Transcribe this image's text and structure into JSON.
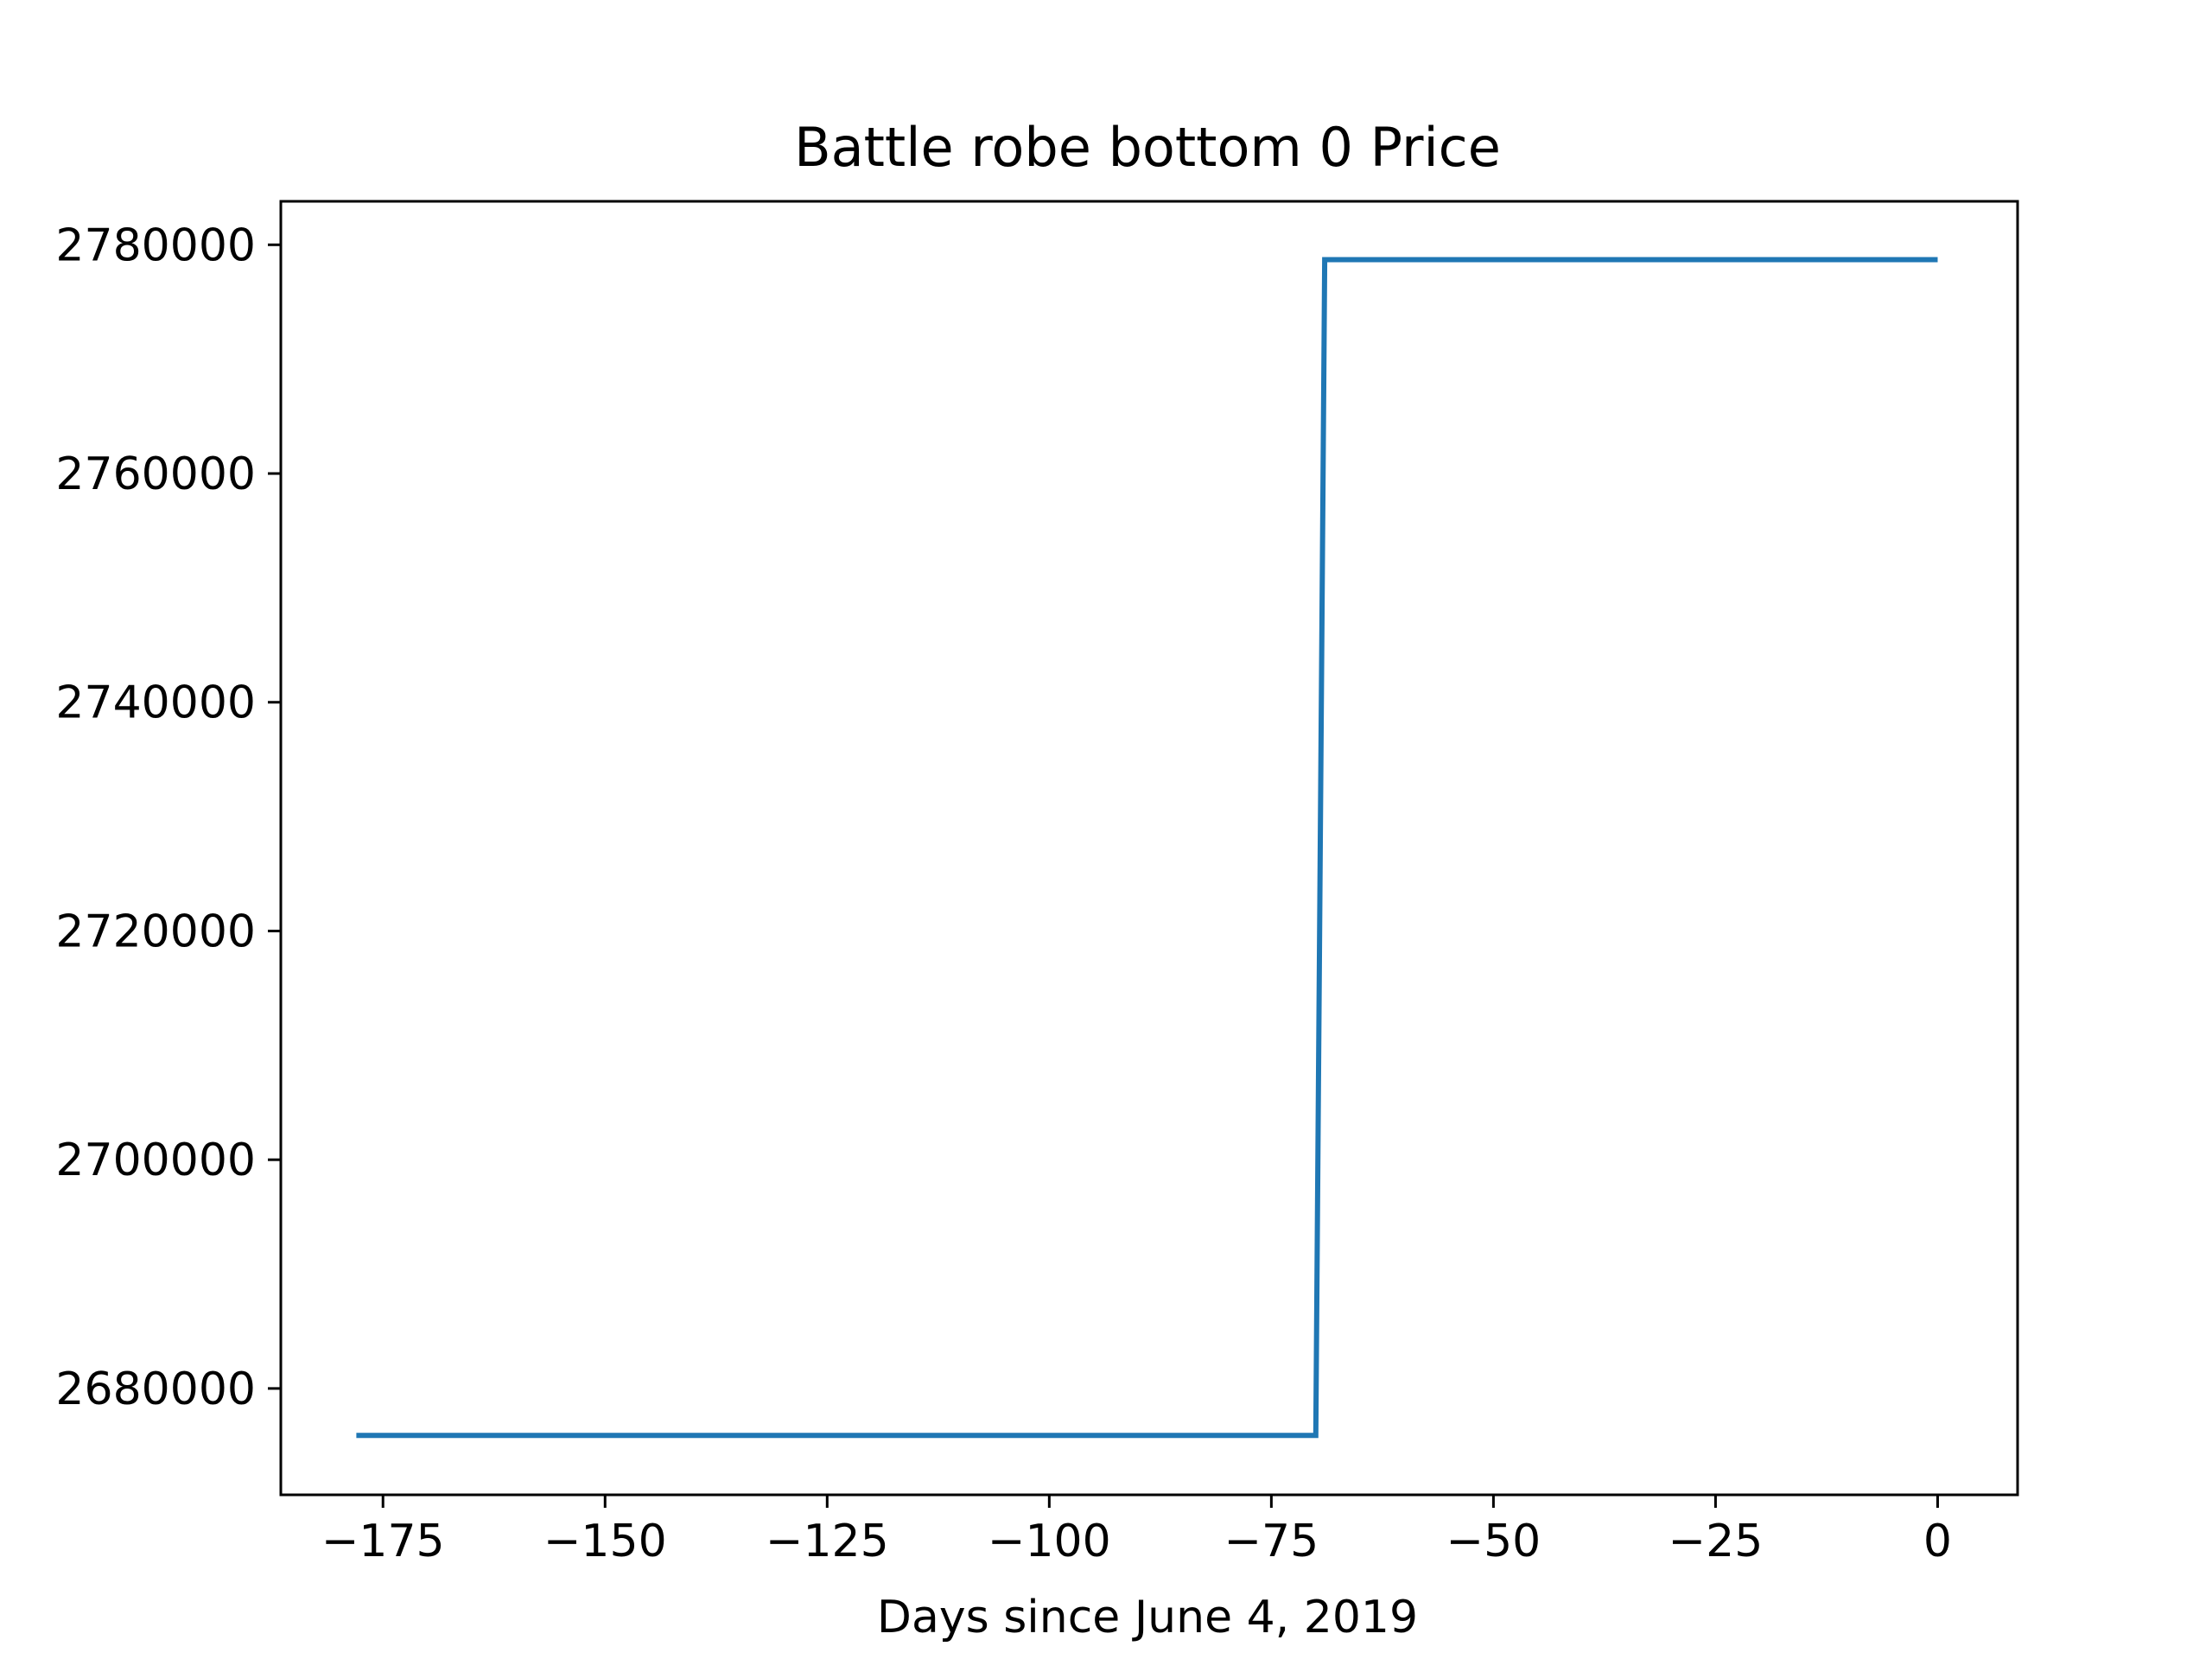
{
  "chart_data": {
    "type": "line",
    "title": "Battle robe bottom 0 Price",
    "xlabel": "Days since June 4, 2019",
    "ylabel": "",
    "xlim": [
      -186.5,
      9
    ],
    "ylim": [
      2670700,
      2783800
    ],
    "x_ticks": [
      -175,
      -150,
      -125,
      -100,
      -75,
      -50,
      -25,
      0
    ],
    "x_tick_labels": [
      "−175",
      "−150",
      "−125",
      "−100",
      "−75",
      "−50",
      "−25",
      "0"
    ],
    "y_ticks": [
      2680000,
      2700000,
      2720000,
      2740000,
      2760000,
      2780000
    ],
    "y_tick_labels": [
      "2680000",
      "2700000",
      "2720000",
      "2740000",
      "2760000",
      "2780000"
    ],
    "grid": false,
    "series": [
      {
        "color": "#1f77b4",
        "points": [
          {
            "x": -178,
            "y": 2675900
          },
          {
            "x": -70,
            "y": 2675900
          },
          {
            "x": -69,
            "y": 2778700
          },
          {
            "x": 0,
            "y": 2778700
          }
        ]
      }
    ]
  }
}
